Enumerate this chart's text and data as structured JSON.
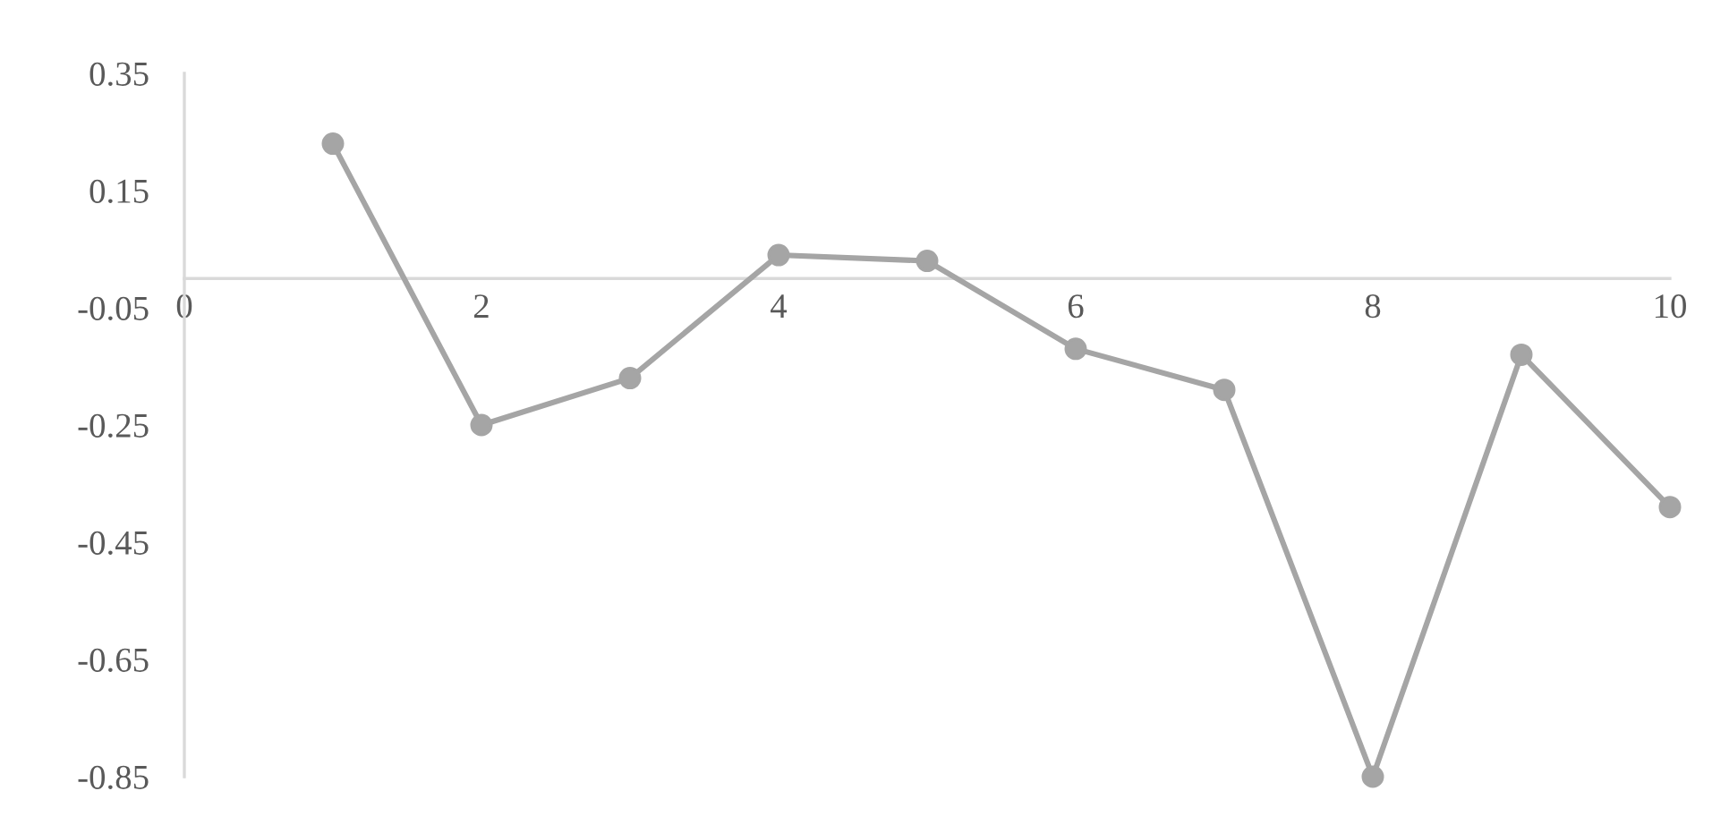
{
  "chart_data": {
    "type": "line",
    "x": [
      1,
      2,
      3,
      4,
      5,
      6,
      7,
      8,
      9,
      10
    ],
    "series": [
      {
        "color": "#a5a5a5",
        "values": [
          0.23,
          -0.25,
          -0.17,
          0.04,
          0.03,
          -0.12,
          -0.19,
          -0.85,
          -0.13,
          -0.39
        ]
      }
    ],
    "xlim": [
      0,
      10
    ],
    "xticks": [
      0,
      2,
      4,
      6,
      8,
      10
    ],
    "ylim": [
      -0.85,
      0.35
    ],
    "yticks": [
      -0.85,
      -0.65,
      -0.45,
      -0.25,
      -0.05,
      0.15,
      0.35
    ],
    "marker": "circle",
    "line_style": "solid",
    "grid": false,
    "legend": false
  }
}
